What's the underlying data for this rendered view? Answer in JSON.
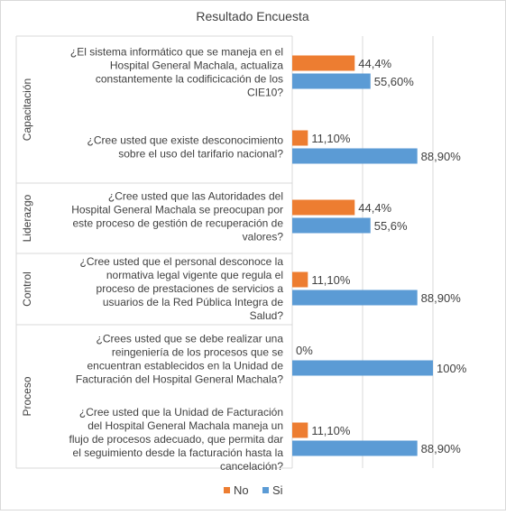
{
  "chart_data": {
    "type": "bar",
    "orientation": "horizontal",
    "title": "Resultado Encuesta",
    "xlabel": "",
    "ylabel": "",
    "xlim": [
      0,
      100
    ],
    "grid": true,
    "legend_position": "bottom",
    "groups": [
      {
        "name": "Capacitación",
        "question_count": 2
      },
      {
        "name": "Liderazgo",
        "question_count": 1
      },
      {
        "name": "Control",
        "question_count": 1
      },
      {
        "name": "Proceso",
        "question_count": 2
      }
    ],
    "categories": [
      [
        "¿El sistema informático que se maneja en el",
        "Hospital General Machala, actualiza",
        "constantemente la codificicación de los",
        "CIE10?"
      ],
      [
        "¿Cree usted que existe desconocimiento",
        "sobre el uso del tarifario nacional?"
      ],
      [
        "¿Cree usted que las Autoridades del",
        "Hospital General Machala se preocupan por",
        "este proceso de gestión de recuperación de",
        "valores?"
      ],
      [
        "¿Cree usted que el personal desconoce la",
        "normativa legal vigente que regula el",
        "proceso de prestaciones de servicios a",
        "usuarios de la Red Pública Integra de",
        "Salud?"
      ],
      [
        "¿Crees usted que se debe realizar una",
        "reingeniería de los procesos que se",
        "encuentran establecidos en la Unidad de",
        "Facturación del Hospital General Machala?"
      ],
      [
        "¿Cree usted que la Unidad de Facturación",
        "del Hospital General Machala maneja un",
        "flujo de procesos adecuado, que permita dar",
        "el seguimiento desde la facturación hasta la",
        "cancelación?"
      ]
    ],
    "series": [
      {
        "name": "No",
        "color": "#ED7D31",
        "values": [
          44.4,
          11.1,
          44.4,
          11.1,
          0,
          11.1
        ],
        "labels": [
          "44,4%",
          "11,10%",
          "44,4%",
          "11,10%",
          "0%",
          "11,10%"
        ]
      },
      {
        "name": "Si",
        "color": "#5B9BD5",
        "values": [
          55.6,
          88.9,
          55.6,
          88.9,
          100,
          88.9
        ],
        "labels": [
          "55,60%",
          "88,90%",
          "55,6%",
          "88,90%",
          "100%",
          "88,90%"
        ]
      }
    ]
  }
}
